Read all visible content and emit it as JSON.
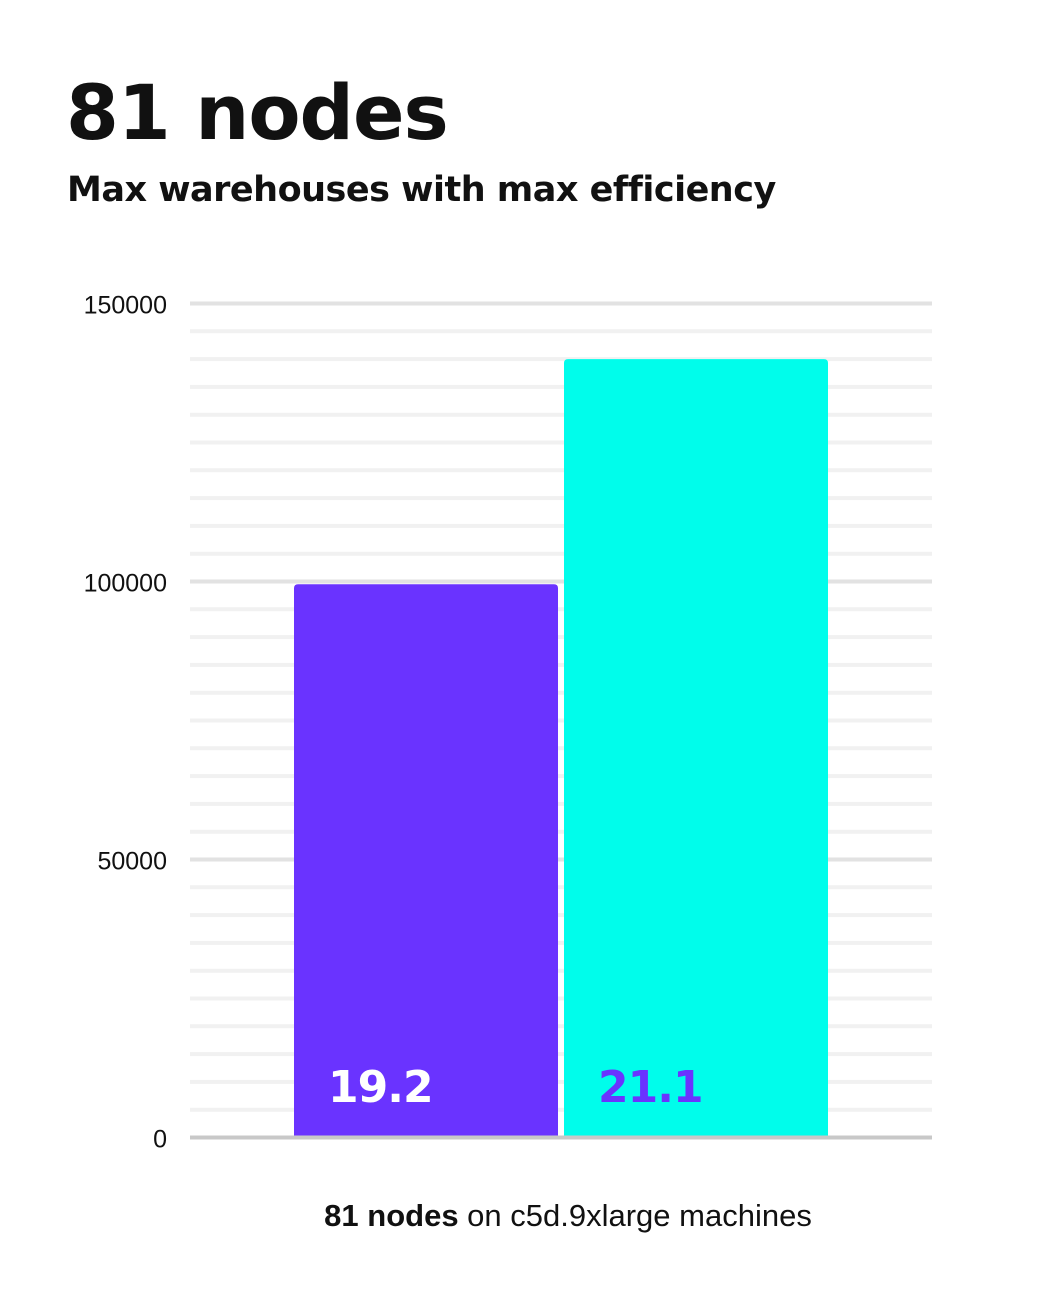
{
  "chart_data": {
    "type": "bar",
    "title": "81 nodes",
    "subtitle": "Max warehouses with max efficiency",
    "categories": [
      "",
      ""
    ],
    "values": [
      99500,
      140000
    ],
    "data_labels": [
      "19.2",
      "21.1"
    ],
    "colors": [
      "#6a33ff",
      "#00fdeb"
    ],
    "label_colors": [
      "#ffffff",
      "#6a33ff"
    ],
    "ylim": [
      0,
      150000
    ],
    "yticks": [
      "0",
      "50000",
      "100000",
      "150000"
    ],
    "minor_grid_step": 5000,
    "grid": true,
    "xlabel_bold": "81 nodes",
    "xlabel_rest": " on c5d.9xlarge machines"
  }
}
